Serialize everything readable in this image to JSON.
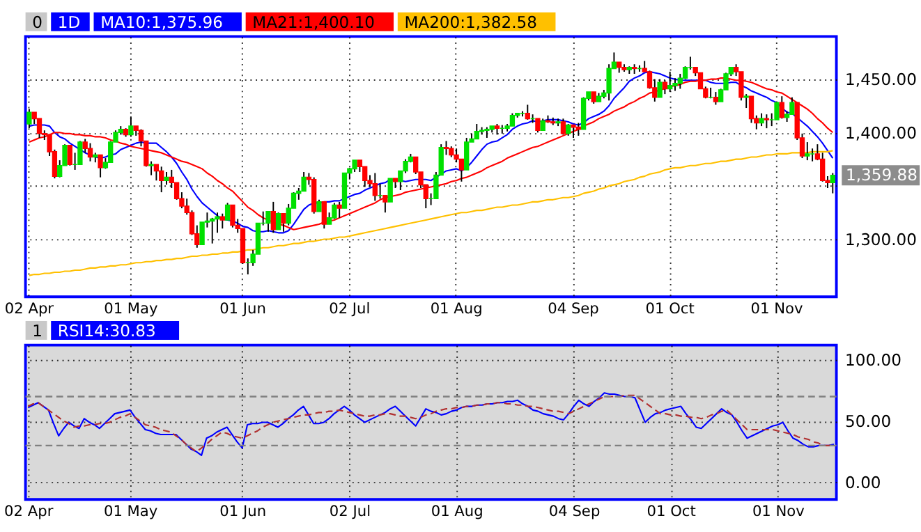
{
  "chart_data": [
    {
      "type": "candlestick",
      "title": "1D",
      "legend": "top",
      "grid": true,
      "annotations": [
        "0",
        "1,359.88"
      ],
      "categories": [
        "02 Apr",
        null,
        null,
        null,
        null,
        null,
        null,
        null,
        null,
        null,
        null,
        null,
        null,
        null,
        null,
        null,
        null,
        null,
        null,
        null,
        "01 May",
        null,
        null,
        null,
        null,
        null,
        null,
        null,
        null,
        null,
        null,
        null,
        null,
        null,
        null,
        null,
        null,
        null,
        null,
        null,
        null,
        null,
        "01 Jun",
        null,
        null,
        null,
        null,
        null,
        null,
        null,
        null,
        null,
        null,
        null,
        null,
        null,
        null,
        null,
        null,
        null,
        null,
        null,
        null,
        "02 Jul",
        null,
        null,
        null,
        null,
        null,
        null,
        null,
        null,
        null,
        null,
        null,
        null,
        null,
        null,
        null,
        null,
        null,
        null,
        null,
        null,
        "01 Aug",
        null,
        null,
        null,
        null,
        null,
        null,
        null,
        null,
        null,
        null,
        null,
        null,
        null,
        null,
        null,
        null,
        null,
        null,
        null,
        null,
        null,
        null,
        "04 Sep",
        null,
        null,
        null,
        null,
        null,
        null,
        null,
        null,
        null,
        null,
        null,
        null,
        null,
        null,
        null,
        null,
        null,
        null,
        "01 Oct",
        null,
        null,
        null,
        null,
        null,
        null,
        null,
        null,
        null,
        null,
        null,
        null,
        null,
        null,
        null,
        null,
        null,
        null,
        null,
        null,
        "01 Nov",
        null,
        null,
        null,
        null,
        null,
        null,
        null,
        null,
        null,
        null,
        null
      ],
      "colors": [
        "#00e000",
        "#ff0000",
        "#ff0000",
        "#ff0000",
        "#ff0000",
        "#ff0000",
        "#00e000",
        "#00e000",
        "#ff0000",
        "#00e000",
        "#00e000",
        "#ff0000",
        "#ff0000",
        "#00e000",
        "#ff0000",
        "#00e000",
        "#00e000",
        "#00e000",
        "#00e000",
        "#ff0000",
        "#00e000",
        "#ff0000",
        "#ff0000",
        "#ff0000",
        "#00e000",
        "#ff0000",
        "#ff0000",
        "#00e000",
        "#ff0000",
        "#ff0000",
        "#ff0000",
        "#ff0000",
        "#ff0000",
        "#ff0000",
        "#00e000",
        "#00e000",
        "#00e000",
        "#00e000",
        "#ff0000",
        "#00e000",
        "#ff0000",
        "#ff0000",
        "#ff0000",
        "#00e000",
        "#00e000",
        "#00e000",
        "#00e000",
        "#00e000",
        "#ff0000",
        "#00e000",
        "#ff0000",
        "#00e000",
        "#00e000",
        "#00e000",
        "#00e000",
        "#ff0000",
        "#ff0000",
        "#00e000",
        "#ff0000",
        "#00e000",
        "#00e000",
        "#ff0000",
        "#00e000",
        "#00e000",
        "#00e000",
        "#ff0000",
        "#ff0000",
        "#ff0000",
        "#ff0000",
        "#00e000",
        "#ff0000",
        "#00e000",
        "#ff0000",
        "#00e000",
        "#00e000",
        "#00e000",
        "#ff0000",
        "#ff0000",
        "#ff0000",
        "#00e000",
        "#00e000",
        "#00e000",
        "#ff0000",
        "#ff0000",
        "#ff0000",
        "#ff0000",
        "#00e000",
        "#00e000",
        "#00e000",
        "#00e000",
        "#00e000",
        "#00e000",
        "#ff0000",
        "#00e000",
        "#00e000",
        "#00e000",
        "#00e000",
        "#00e000",
        "#ff0000",
        "#00e000",
        "#ff0000",
        "#00e000",
        "#ff0000",
        "#ff0000",
        "#00e000",
        "#ff0000",
        "#00e000",
        "#ff0000",
        "#ff0000",
        "#00e000",
        "#00e000",
        "#ff0000",
        "#00e000",
        "#00e000",
        "#00e000",
        "#00e000",
        "#ff0000",
        "#ff0000",
        "#00e000",
        "#ff0000",
        "#00e000",
        "#ff0000",
        "#ff0000",
        "#ff0000",
        "#00e000",
        "#ff0000",
        "#00e000",
        "#00e000",
        "#00e000",
        "#00e000",
        "#00e000",
        "#ff0000",
        "#ff0000",
        "#ff0000",
        "#00e000",
        "#ff0000",
        "#00e000",
        "#00e000",
        "#00e000",
        "#ff0000",
        "#ff0000",
        "#00e000",
        "#ff0000",
        "#ff0000",
        "#00e000",
        "#ff0000",
        "#00e000",
        "#00e000",
        "#ff0000",
        "#00e000",
        "#00e000",
        "#ff0000",
        "#ff0000",
        "#00e000",
        "#00e000",
        "#ff0000",
        "#ff0000",
        "#ff0000",
        "#00e000"
      ],
      "ohlc": [
        [
          1408,
          1422,
          1404,
          1419
        ],
        [
          1419,
          1419,
          1408,
          1413
        ],
        [
          1413,
          1413,
          1395,
          1399
        ],
        [
          1399,
          1402,
          1393,
          1398
        ],
        [
          1398,
          1398,
          1378,
          1382
        ],
        [
          1382,
          1384,
          1357,
          1359
        ],
        [
          1359,
          1374,
          1358,
          1369
        ],
        [
          1369,
          1389,
          1369,
          1388
        ],
        [
          1388,
          1388,
          1369,
          1370
        ],
        [
          1370,
          1381,
          1365,
          1370
        ],
        [
          1370,
          1392,
          1370,
          1391
        ],
        [
          1391,
          1394,
          1381,
          1385
        ],
        [
          1385,
          1390,
          1373,
          1377
        ],
        [
          1377,
          1381,
          1372,
          1379
        ],
        [
          1379,
          1379,
          1358,
          1367
        ],
        [
          1367,
          1376,
          1366,
          1372
        ],
        [
          1372,
          1392,
          1372,
          1391
        ],
        [
          1391,
          1402,
          1391,
          1400
        ],
        [
          1400,
          1406,
          1398,
          1403
        ],
        [
          1403,
          1404,
          1396,
          1398
        ],
        [
          1398,
          1415,
          1396,
          1406
        ],
        [
          1406,
          1406,
          1397,
          1402
        ],
        [
          1402,
          1403,
          1387,
          1392
        ],
        [
          1392,
          1392,
          1368,
          1369
        ],
        [
          1369,
          1373,
          1360,
          1370
        ],
        [
          1370,
          1370,
          1355,
          1364
        ],
        [
          1364,
          1368,
          1344,
          1355
        ],
        [
          1355,
          1363,
          1351,
          1358
        ],
        [
          1358,
          1365,
          1348,
          1353
        ],
        [
          1353,
          1353,
          1337,
          1338
        ],
        [
          1338,
          1344,
          1329,
          1331
        ],
        [
          1331,
          1338,
          1323,
          1325
        ],
        [
          1325,
          1327,
          1304,
          1305
        ],
        [
          1305,
          1313,
          1292,
          1295
        ],
        [
          1295,
          1316,
          1295,
          1316
        ],
        [
          1316,
          1325,
          1311,
          1317
        ],
        [
          1317,
          1320,
          1296,
          1319
        ],
        [
          1319,
          1325,
          1306,
          1321
        ],
        [
          1321,
          1324,
          1310,
          1318
        ],
        [
          1318,
          1334,
          1318,
          1332
        ],
        [
          1332,
          1332,
          1311,
          1313
        ],
        [
          1313,
          1319,
          1306,
          1310
        ],
        [
          1310,
          1310,
          1277,
          1278
        ],
        [
          1278,
          1282,
          1267,
          1278
        ],
        [
          1278,
          1290,
          1275,
          1286
        ],
        [
          1286,
          1315,
          1286,
          1315
        ],
        [
          1315,
          1326,
          1313,
          1315
        ],
        [
          1315,
          1326,
          1307,
          1326
        ],
        [
          1326,
          1335,
          1306,
          1309
        ],
        [
          1309,
          1325,
          1309,
          1324
        ],
        [
          1324,
          1324,
          1307,
          1315
        ],
        [
          1315,
          1333,
          1313,
          1329
        ],
        [
          1329,
          1344,
          1329,
          1343
        ],
        [
          1343,
          1348,
          1337,
          1345
        ],
        [
          1345,
          1363,
          1345,
          1358
        ],
        [
          1358,
          1362,
          1351,
          1356
        ],
        [
          1356,
          1358,
          1324,
          1326
        ],
        [
          1326,
          1337,
          1326,
          1335
        ],
        [
          1335,
          1335,
          1310,
          1314
        ],
        [
          1314,
          1325,
          1314,
          1320
        ],
        [
          1320,
          1334,
          1319,
          1332
        ],
        [
          1332,
          1335,
          1320,
          1329
        ],
        [
          1329,
          1362,
          1329,
          1362
        ],
        [
          1362,
          1367,
          1356,
          1366
        ],
        [
          1366,
          1374,
          1363,
          1374
        ],
        [
          1374,
          1374,
          1363,
          1368
        ],
        [
          1368,
          1368,
          1349,
          1355
        ],
        [
          1355,
          1360,
          1349,
          1352
        ],
        [
          1352,
          1362,
          1336,
          1341
        ],
        [
          1341,
          1352,
          1338,
          1341
        ],
        [
          1341,
          1341,
          1325,
          1335
        ],
        [
          1335,
          1357,
          1335,
          1357
        ],
        [
          1357,
          1357,
          1348,
          1354
        ],
        [
          1354,
          1364,
          1346,
          1364
        ],
        [
          1364,
          1375,
          1362,
          1373
        ],
        [
          1373,
          1380,
          1372,
          1377
        ],
        [
          1377,
          1377,
          1361,
          1363
        ],
        [
          1363,
          1363,
          1348,
          1351
        ],
        [
          1351,
          1351,
          1329,
          1338
        ],
        [
          1338,
          1343,
          1332,
          1338
        ],
        [
          1338,
          1363,
          1338,
          1360
        ],
        [
          1360,
          1389,
          1360,
          1386
        ],
        [
          1386,
          1392,
          1379,
          1385
        ],
        [
          1385,
          1387,
          1377,
          1379
        ],
        [
          1379,
          1385,
          1372,
          1375
        ],
        [
          1375,
          1375,
          1354,
          1365
        ],
        [
          1365,
          1395,
          1365,
          1391
        ],
        [
          1391,
          1399,
          1391,
          1394
        ],
        [
          1394,
          1408,
          1394,
          1401
        ],
        [
          1401,
          1405,
          1398,
          1402
        ],
        [
          1402,
          1405,
          1395,
          1403
        ],
        [
          1403,
          1406,
          1400,
          1406
        ],
        [
          1406,
          1408,
          1398,
          1404
        ],
        [
          1404,
          1407,
          1399,
          1404
        ],
        [
          1404,
          1408,
          1401,
          1406
        ],
        [
          1406,
          1418,
          1406,
          1416
        ],
        [
          1416,
          1418,
          1414,
          1418
        ],
        [
          1418,
          1420,
          1415,
          1418
        ],
        [
          1418,
          1426,
          1412,
          1413
        ],
        [
          1413,
          1417,
          1409,
          1413
        ],
        [
          1413,
          1413,
          1400,
          1402
        ],
        [
          1402,
          1413,
          1402,
          1411
        ],
        [
          1411,
          1416,
          1409,
          1410
        ],
        [
          1410,
          1414,
          1407,
          1409
        ],
        [
          1409,
          1413,
          1406,
          1410
        ],
        [
          1410,
          1413,
          1398,
          1399
        ],
        [
          1399,
          1408,
          1397,
          1407
        ],
        [
          1407,
          1407,
          1395,
          1405
        ],
        [
          1405,
          1409,
          1397,
          1403
        ],
        [
          1403,
          1433,
          1403,
          1432
        ],
        [
          1432,
          1438,
          1430,
          1438
        ],
        [
          1438,
          1438,
          1427,
          1429
        ],
        [
          1429,
          1437,
          1429,
          1434
        ],
        [
          1434,
          1440,
          1432,
          1437
        ],
        [
          1437,
          1464,
          1430,
          1460
        ],
        [
          1460,
          1475,
          1460,
          1466
        ],
        [
          1466,
          1466,
          1456,
          1461
        ],
        [
          1461,
          1464,
          1457,
          1459
        ],
        [
          1459,
          1462,
          1455,
          1461
        ],
        [
          1461,
          1464,
          1455,
          1460
        ],
        [
          1460,
          1463,
          1457,
          1460
        ],
        [
          1460,
          1467,
          1457,
          1457
        ],
        [
          1457,
          1458,
          1441,
          1442
        ],
        [
          1442,
          1450,
          1429,
          1433
        ],
        [
          1433,
          1450,
          1433,
          1447
        ],
        [
          1447,
          1449,
          1436,
          1441
        ],
        [
          1441,
          1457,
          1438,
          1444
        ],
        [
          1444,
          1451,
          1439,
          1446
        ],
        [
          1446,
          1455,
          1441,
          1451
        ],
        [
          1451,
          1462,
          1450,
          1461
        ],
        [
          1461,
          1471,
          1459,
          1461
        ],
        [
          1461,
          1461,
          1453,
          1456
        ],
        [
          1456,
          1456,
          1441,
          1441
        ],
        [
          1441,
          1443,
          1432,
          1433
        ],
        [
          1433,
          1442,
          1432,
          1433
        ],
        [
          1433,
          1438,
          1426,
          1429
        ],
        [
          1429,
          1441,
          1429,
          1440
        ],
        [
          1440,
          1456,
          1440,
          1455
        ],
        [
          1455,
          1461,
          1453,
          1461
        ],
        [
          1461,
          1464,
          1453,
          1457
        ],
        [
          1457,
          1457,
          1430,
          1433
        ],
        [
          1433,
          1436,
          1423,
          1434
        ],
        [
          1434,
          1434,
          1409,
          1413
        ],
        [
          1413,
          1416,
          1403,
          1409
        ],
        [
          1409,
          1418,
          1406,
          1413
        ],
        [
          1413,
          1417,
          1404,
          1412
        ],
        [
          1412,
          1418,
          1406,
          1412
        ],
        [
          1412,
          1429,
          1412,
          1428
        ],
        [
          1428,
          1434,
          1413,
          1414
        ],
        [
          1414,
          1420,
          1410,
          1417
        ],
        [
          1417,
          1433,
          1417,
          1428
        ],
        [
          1428,
          1428,
          1393,
          1395
        ],
        [
          1395,
          1399,
          1376,
          1378
        ],
        [
          1378,
          1391,
          1374,
          1380
        ],
        [
          1380,
          1385,
          1373,
          1380
        ],
        [
          1380,
          1389,
          1374,
          1375
        ],
        [
          1375,
          1381,
          1354,
          1355
        ],
        [
          1355,
          1359,
          1348,
          1353
        ],
        [
          1353,
          1362,
          1343,
          1359.88
        ]
      ],
      "series": [
        {
          "name": "MA10:1,375.96",
          "type": "line",
          "color": "#0000ff",
          "values": [
            1406,
            1407,
            1407,
            1407,
            1406,
            1400,
            1396,
            1394,
            1390,
            1387,
            1384,
            1381,
            1379,
            1377,
            1376,
            1377,
            1379,
            1380,
            1384,
            1386,
            1388,
            1390,
            1391,
            1390,
            1390,
            1390,
            1386,
            1382,
            1377,
            1371,
            1363,
            1356,
            1347,
            1340,
            1334,
            1330,
            1326,
            1322,
            1319,
            1318,
            1317,
            1315,
            1312,
            1311,
            1308,
            1307,
            1307,
            1308,
            1307,
            1306,
            1306,
            1308,
            1314,
            1321,
            1328,
            1332,
            1334,
            1334,
            1335,
            1335,
            1336,
            1336,
            1338,
            1340,
            1342,
            1343,
            1346,
            1348,
            1350,
            1352,
            1353,
            1356,
            1355,
            1355,
            1354,
            1355,
            1356,
            1356,
            1356,
            1355,
            1358,
            1361,
            1364,
            1365,
            1366,
            1364,
            1367,
            1372,
            1378,
            1384,
            1389,
            1391,
            1392,
            1395,
            1398,
            1403,
            1406,
            1408,
            1409,
            1411,
            1410,
            1411,
            1412,
            1412,
            1412,
            1411,
            1410,
            1408,
            1407,
            1409,
            1413,
            1415,
            1417,
            1420,
            1425,
            1432,
            1437,
            1442,
            1448,
            1451,
            1453,
            1456,
            1457,
            1456,
            1455,
            1453,
            1451,
            1450,
            1449,
            1449,
            1449,
            1449,
            1449,
            1449,
            1447,
            1446,
            1446,
            1446,
            1447,
            1447,
            1444,
            1442,
            1439,
            1437,
            1435,
            1433,
            1430,
            1428,
            1423,
            1419,
            1418,
            1414,
            1410,
            1406,
            1401,
            1396,
            1390,
            1383,
            1376
          ]
        },
        {
          "name": "MA21:1,400.10",
          "type": "line",
          "color": "#ff0000",
          "values": [
            1391,
            1393,
            1395,
            1396,
            1398,
            1400,
            1400,
            1399,
            1399,
            1398,
            1398,
            1397,
            1397,
            1396,
            1396,
            1395,
            1393,
            1392,
            1390,
            1389,
            1387,
            1386,
            1385,
            1384,
            1383,
            1382,
            1381,
            1379,
            1377,
            1375,
            1373,
            1372,
            1370,
            1368,
            1366,
            1362,
            1359,
            1355,
            1352,
            1348,
            1345,
            1340,
            1335,
            1330,
            1327,
            1323,
            1320,
            1318,
            1316,
            1314,
            1313,
            1311,
            1309,
            1310,
            1311,
            1312,
            1313,
            1314,
            1316,
            1317,
            1318,
            1320,
            1322,
            1324,
            1326,
            1328,
            1330,
            1332,
            1334,
            1337,
            1339,
            1340,
            1341,
            1342,
            1344,
            1345,
            1346,
            1347,
            1348,
            1349,
            1350,
            1351,
            1352,
            1354,
            1355,
            1357,
            1358,
            1360,
            1362,
            1364,
            1367,
            1369,
            1371,
            1373,
            1376,
            1378,
            1380,
            1382,
            1384,
            1386,
            1387,
            1389,
            1391,
            1393,
            1395,
            1397,
            1399,
            1401,
            1403,
            1406,
            1408,
            1410,
            1413,
            1415,
            1417,
            1420,
            1422,
            1424,
            1427,
            1429,
            1432,
            1434,
            1437,
            1438,
            1440,
            1441,
            1443,
            1444,
            1445,
            1447,
            1448,
            1448,
            1449,
            1449,
            1450,
            1450,
            1451,
            1451,
            1450,
            1449,
            1449,
            1448,
            1447,
            1445,
            1443,
            1441,
            1440,
            1438,
            1437,
            1434,
            1431,
            1428,
            1425,
            1422,
            1418,
            1413,
            1409,
            1404,
            1400
          ]
        },
        {
          "name": "MA200:1,382.58",
          "type": "line",
          "color": "#ffc000",
          "values": [
            1266,
            1267,
            1267,
            1268,
            1268,
            1269,
            1269,
            1270,
            1270,
            1271,
            1271,
            1272,
            1273,
            1273,
            1274,
            1274,
            1275,
            1275,
            1276,
            1276,
            1277,
            1278,
            1278,
            1279,
            1279,
            1280,
            1280,
            1281,
            1281,
            1282,
            1282,
            1283,
            1284,
            1284,
            1285,
            1285,
            1286,
            1286,
            1287,
            1287,
            1288,
            1288,
            1289,
            1290,
            1290,
            1291,
            1292,
            1292,
            1293,
            1294,
            1294,
            1295,
            1296,
            1296,
            1297,
            1298,
            1298,
            1299,
            1300,
            1300,
            1301,
            1302,
            1302,
            1303,
            1304,
            1305,
            1306,
            1307,
            1308,
            1309,
            1310,
            1311,
            1312,
            1313,
            1314,
            1315,
            1316,
            1317,
            1318,
            1319,
            1320,
            1321,
            1322,
            1323,
            1324,
            1325,
            1325,
            1326,
            1327,
            1327,
            1328,
            1329,
            1330,
            1330,
            1331,
            1332,
            1332,
            1333,
            1334,
            1335,
            1335,
            1336,
            1337,
            1337,
            1338,
            1339,
            1339,
            1340,
            1341,
            1343,
            1344,
            1345,
            1347,
            1348,
            1350,
            1351,
            1352,
            1354,
            1355,
            1356,
            1358,
            1359,
            1361,
            1362,
            1363,
            1365,
            1366,
            1367,
            1367,
            1368,
            1369,
            1369,
            1370,
            1371,
            1371,
            1372,
            1373,
            1373,
            1374,
            1375,
            1375,
            1376,
            1377,
            1377,
            1378,
            1379,
            1379,
            1380,
            1380,
            1380,
            1381,
            1381,
            1381,
            1381,
            1382,
            1382,
            1382,
            1382,
            1383
          ]
        }
      ],
      "ylim": [
        1246,
        1490
      ],
      "yticks": [
        {
          "value": 1300,
          "label": "1,300.00"
        },
        {
          "value": 1350,
          "label": null
        },
        {
          "value": 1400,
          "label": "1,400.00"
        },
        {
          "value": 1450,
          "label": "1,450.00"
        }
      ]
    },
    {
      "type": "line",
      "legend": "top",
      "grid": true,
      "annotations": [
        "1"
      ],
      "categories": [
        "02 Apr",
        null,
        null,
        null,
        null,
        null,
        null,
        null,
        null,
        null,
        null,
        null,
        null,
        null,
        null,
        null,
        null,
        null,
        null,
        null,
        "01 May",
        null,
        null,
        null,
        null,
        null,
        null,
        null,
        null,
        null,
        null,
        null,
        null,
        null,
        null,
        null,
        null,
        null,
        null,
        null,
        null,
        null,
        "01 Jun",
        null,
        null,
        null,
        null,
        null,
        null,
        null,
        null,
        null,
        null,
        null,
        null,
        null,
        null,
        null,
        null,
        null,
        null,
        null,
        null,
        "02 Jul",
        null,
        null,
        null,
        null,
        null,
        null,
        null,
        null,
        null,
        null,
        null,
        null,
        null,
        null,
        null,
        null,
        null,
        null,
        null,
        null,
        "01 Aug",
        null,
        null,
        null,
        null,
        null,
        null,
        null,
        null,
        null,
        null,
        null,
        null,
        null,
        null,
        null,
        null,
        null,
        null,
        null,
        null,
        null,
        null,
        "04 Sep",
        null,
        null,
        null,
        null,
        null,
        null,
        null,
        null,
        null,
        null,
        null,
        null,
        null,
        null,
        null,
        null,
        null,
        null,
        "01 Oct",
        null,
        null,
        null,
        null,
        null,
        null,
        null,
        null,
        null,
        null,
        null,
        null,
        null,
        null,
        null,
        null,
        null,
        null,
        null,
        null,
        "01 Nov",
        null,
        null,
        null,
        null,
        null,
        null,
        null,
        null,
        null,
        null,
        null
      ],
      "series": [
        {
          "name": "RSI14:30.83",
          "color": "#0000ff",
          "values": [
            61,
            63,
            65,
            62,
            59,
            48,
            38,
            44,
            49,
            46,
            44,
            52,
            49,
            47,
            44,
            48,
            52,
            56,
            57,
            58,
            59,
            53,
            48,
            43,
            42,
            40,
            39,
            39,
            39,
            39,
            35,
            31,
            27,
            25,
            22,
            36,
            38,
            41,
            43,
            45,
            39,
            33,
            28,
            47,
            48,
            48,
            49,
            49,
            47,
            45,
            48,
            52,
            55,
            59,
            62,
            55,
            48,
            48,
            49,
            52,
            56,
            59,
            62,
            59,
            55,
            52,
            49,
            51,
            53,
            55,
            57,
            60,
            62,
            58,
            54,
            50,
            46,
            53,
            60,
            58,
            57,
            55,
            56,
            58,
            59,
            61,
            62,
            62,
            63,
            63,
            64,
            64,
            65,
            65,
            66,
            66,
            67,
            64,
            62,
            59,
            58,
            56,
            55,
            54,
            52,
            51,
            56,
            62,
            67,
            64,
            62,
            66,
            69,
            73,
            72,
            72,
            71,
            70,
            70,
            69,
            59,
            49,
            53,
            56,
            57,
            59,
            60,
            61,
            62,
            56,
            51,
            45,
            44,
            48,
            52,
            56,
            60,
            57,
            55,
            49,
            42,
            36,
            38,
            40,
            42,
            44,
            46,
            47,
            49,
            42,
            36,
            34,
            31,
            29,
            29,
            30,
            30,
            30,
            31
          ]
        },
        {
          "color": "#b03030",
          "line_style": "dashed",
          "values": [
            62,
            64,
            65,
            62,
            59,
            56,
            53,
            50,
            48,
            45,
            46,
            46,
            47,
            47,
            48,
            48,
            49,
            51,
            53,
            54,
            56,
            53,
            50,
            47,
            46,
            45,
            43,
            42,
            41,
            38,
            35,
            31,
            28,
            25,
            28,
            31,
            35,
            38,
            41,
            40,
            38,
            37,
            36,
            38,
            40,
            42,
            45,
            47,
            49,
            50,
            51,
            52,
            53,
            54,
            55,
            55,
            56,
            57,
            57,
            58,
            58,
            59,
            58,
            57,
            56,
            55,
            54,
            54,
            55,
            55,
            56,
            56,
            55,
            54,
            54,
            53,
            52,
            53,
            55,
            56,
            58,
            59,
            60,
            60,
            61,
            61,
            62,
            62,
            63,
            63,
            64,
            64,
            65,
            65,
            64,
            64,
            63,
            63,
            62,
            62,
            61,
            60,
            59,
            58,
            58,
            57,
            56,
            58,
            60,
            62,
            64,
            66,
            68,
            70,
            70,
            70,
            70,
            71,
            71,
            71,
            68,
            65,
            62,
            59,
            56,
            56,
            55,
            55,
            54,
            54,
            53,
            53,
            52,
            53,
            55,
            56,
            58,
            59,
            55,
            51,
            47,
            43,
            43,
            43,
            43,
            43,
            43,
            42,
            41,
            40,
            39,
            37,
            36,
            35,
            33,
            32,
            30,
            30,
            31
          ]
        }
      ],
      "ref_lines": [
        {
          "axis": "y",
          "value": 70,
          "color": "#808080",
          "line_style": "dashed"
        },
        {
          "axis": "y",
          "value": 30,
          "color": "#808080",
          "line_style": "dashed"
        }
      ],
      "ylim": [
        -14,
        112
      ],
      "yticks": [
        {
          "value": 0,
          "label": "0.00"
        },
        {
          "value": 50,
          "label": "50.00"
        },
        {
          "value": 100,
          "label": "100.00"
        }
      ]
    }
  ]
}
